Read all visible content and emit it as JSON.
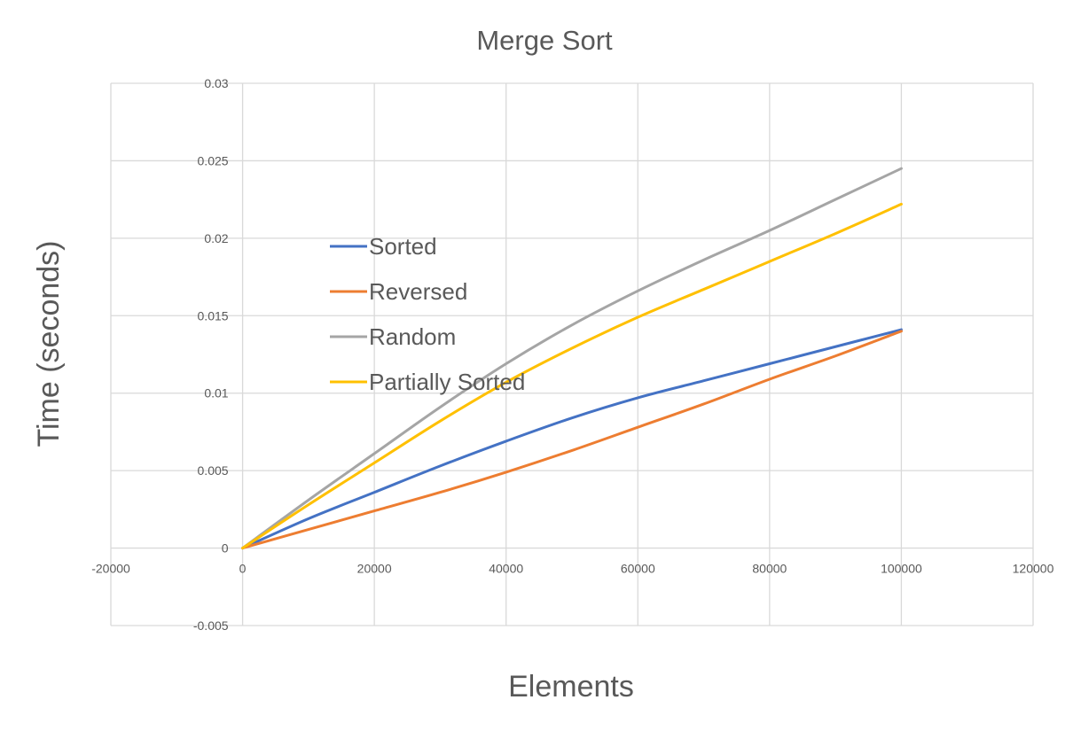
{
  "chart_data": {
    "type": "line",
    "title": "Merge Sort",
    "xlabel": "Elements",
    "ylabel": "Time (seconds)",
    "xlim": [
      -20000,
      120000
    ],
    "ylim": [
      -0.005,
      0.03
    ],
    "x_ticks": [
      -20000,
      0,
      20000,
      40000,
      60000,
      80000,
      100000,
      120000
    ],
    "x_tick_labels": [
      "-20000",
      "0",
      "20000",
      "40000",
      "60000",
      "80000",
      "100000",
      "120000"
    ],
    "y_ticks": [
      -0.005,
      0,
      0.005,
      0.01,
      0.015,
      0.02,
      0.025,
      0.03
    ],
    "y_tick_labels": [
      "-0.005",
      "0",
      "0.005",
      "0.01",
      "0.015",
      "0.02",
      "0.025",
      "0.03"
    ],
    "grid": true,
    "legend_position": "center-left",
    "series": [
      {
        "name": "Sorted",
        "color": "#4472C4",
        "x": [
          0,
          10000,
          20000,
          30000,
          40000,
          50000,
          60000,
          70000,
          80000,
          90000,
          100000
        ],
        "y": [
          0,
          0.0019,
          0.0036,
          0.0053,
          0.0069,
          0.0084,
          0.0097,
          0.0108,
          0.0119,
          0.013,
          0.0141
        ]
      },
      {
        "name": "Reversed",
        "color": "#ED7D31",
        "x": [
          0,
          10000,
          20000,
          30000,
          40000,
          50000,
          60000,
          70000,
          80000,
          90000,
          100000
        ],
        "y": [
          0,
          0.0012,
          0.0024,
          0.0036,
          0.0049,
          0.0063,
          0.0078,
          0.0093,
          0.0109,
          0.0124,
          0.014
        ]
      },
      {
        "name": "Random",
        "color": "#A5A5A5",
        "x": [
          0,
          10000,
          20000,
          30000,
          40000,
          50000,
          60000,
          70000,
          80000,
          90000,
          100000
        ],
        "y": [
          0,
          0.0031,
          0.0061,
          0.0091,
          0.0119,
          0.0144,
          0.0166,
          0.0186,
          0.0205,
          0.0225,
          0.0245
        ]
      },
      {
        "name": "Partially Sorted",
        "color": "#FFC000",
        "x": [
          0,
          10000,
          20000,
          30000,
          40000,
          50000,
          60000,
          70000,
          80000,
          90000,
          100000
        ],
        "y": [
          0,
          0.0028,
          0.0055,
          0.0082,
          0.0107,
          0.0129,
          0.0149,
          0.0167,
          0.0185,
          0.0203,
          0.0222
        ]
      }
    ]
  }
}
